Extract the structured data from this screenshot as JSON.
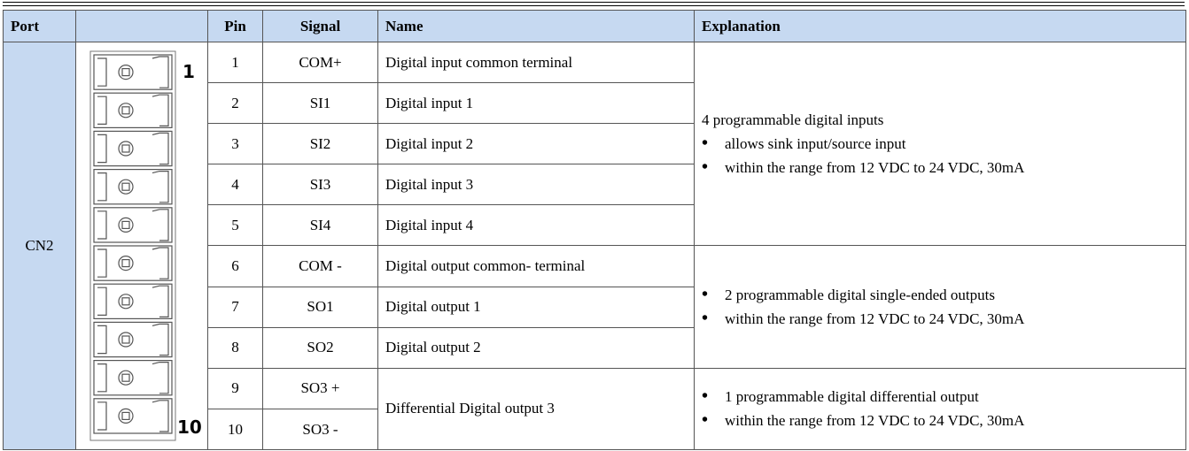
{
  "header": {
    "port": "Port",
    "pin": "Pin",
    "signal": "Signal",
    "name": "Name",
    "explanation": "Explanation"
  },
  "port": "CN2",
  "connector": {
    "first_label": "1",
    "last_label": "10"
  },
  "groups": [
    {
      "rows": [
        {
          "pin": 1,
          "signal": "COM+",
          "name": "Digital input common  terminal"
        },
        {
          "pin": 2,
          "signal": "SI1",
          "name": "Digital input 1"
        },
        {
          "pin": 3,
          "signal": "SI2",
          "name": "Digital input 2"
        },
        {
          "pin": 4,
          "signal": "SI3",
          "name": "Digital input 3"
        },
        {
          "pin": 5,
          "signal": "SI4",
          "name": "Digital input 4"
        }
      ],
      "explanation": {
        "title": "4 programmable  digital inputs",
        "bullets": [
          "allows sink input/source input",
          "within the range from 12 VDC to 24 VDC, 30mA"
        ]
      }
    },
    {
      "rows": [
        {
          "pin": 6,
          "signal": "COM -",
          "name": "Digital output common- terminal"
        },
        {
          "pin": 7,
          "signal": "SO1",
          "name": "Digital output 1"
        },
        {
          "pin": 8,
          "signal": "SO2",
          "name": "Digital output 2"
        }
      ],
      "explanation": {
        "bullets": [
          "2 programmable digital single-ended  outputs",
          "within the range from 12 VDC to 24 VDC, 30mA"
        ]
      }
    },
    {
      "rows": [
        {
          "pin": 9,
          "signal": "SO3 +",
          "name": "Differential  Digital output 3"
        },
        {
          "pin": 10,
          "signal": "SO3 -"
        }
      ],
      "explanation": {
        "bullets": [
          "1 programmable  digital  differential output",
          "within the range from 12 VDC to 24 VDC, 30mA"
        ]
      }
    }
  ]
}
